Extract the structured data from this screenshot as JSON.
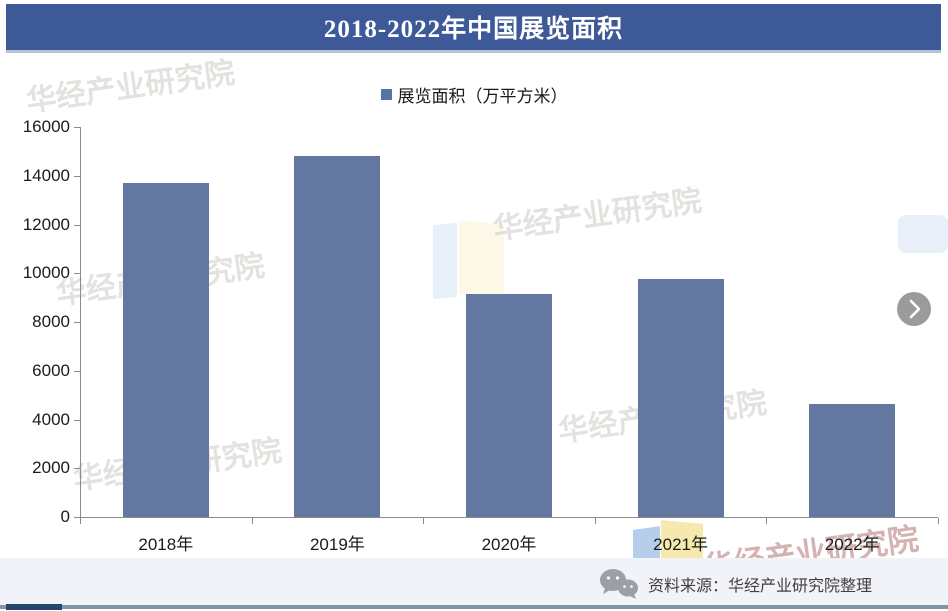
{
  "banner": {
    "title": "2018-2022年中国展览面积"
  },
  "legend": {
    "label": "展览面积（万平方米）",
    "marker_color": "#5573a5"
  },
  "chart_data": {
    "type": "bar",
    "title": "2018-2022年中国展览面积",
    "categories": [
      "2018年",
      "2019年",
      "2020年",
      "2021年",
      "2022年"
    ],
    "values": [
      13700,
      14800,
      9150,
      9750,
      4650
    ],
    "series_name": "展览面积（万平方米）",
    "xlabel": "",
    "ylabel": "",
    "ylim": [
      0,
      16000
    ],
    "yticks": [
      0,
      2000,
      4000,
      6000,
      8000,
      10000,
      12000,
      14000,
      16000
    ],
    "bar_color": "#6377a1",
    "grid": false,
    "legend_position": "top"
  },
  "watermark": {
    "text": "华经产业研究院"
  },
  "footer": {
    "source": "资料来源：华经产业研究院整理"
  },
  "carousel": {
    "next_symbol": "›"
  },
  "colors": {
    "banner_bg": "#3d5998",
    "axis": "#8c8c8c",
    "logo_blue": "#a9c4e8",
    "logo_yellow": "#f2e398"
  }
}
